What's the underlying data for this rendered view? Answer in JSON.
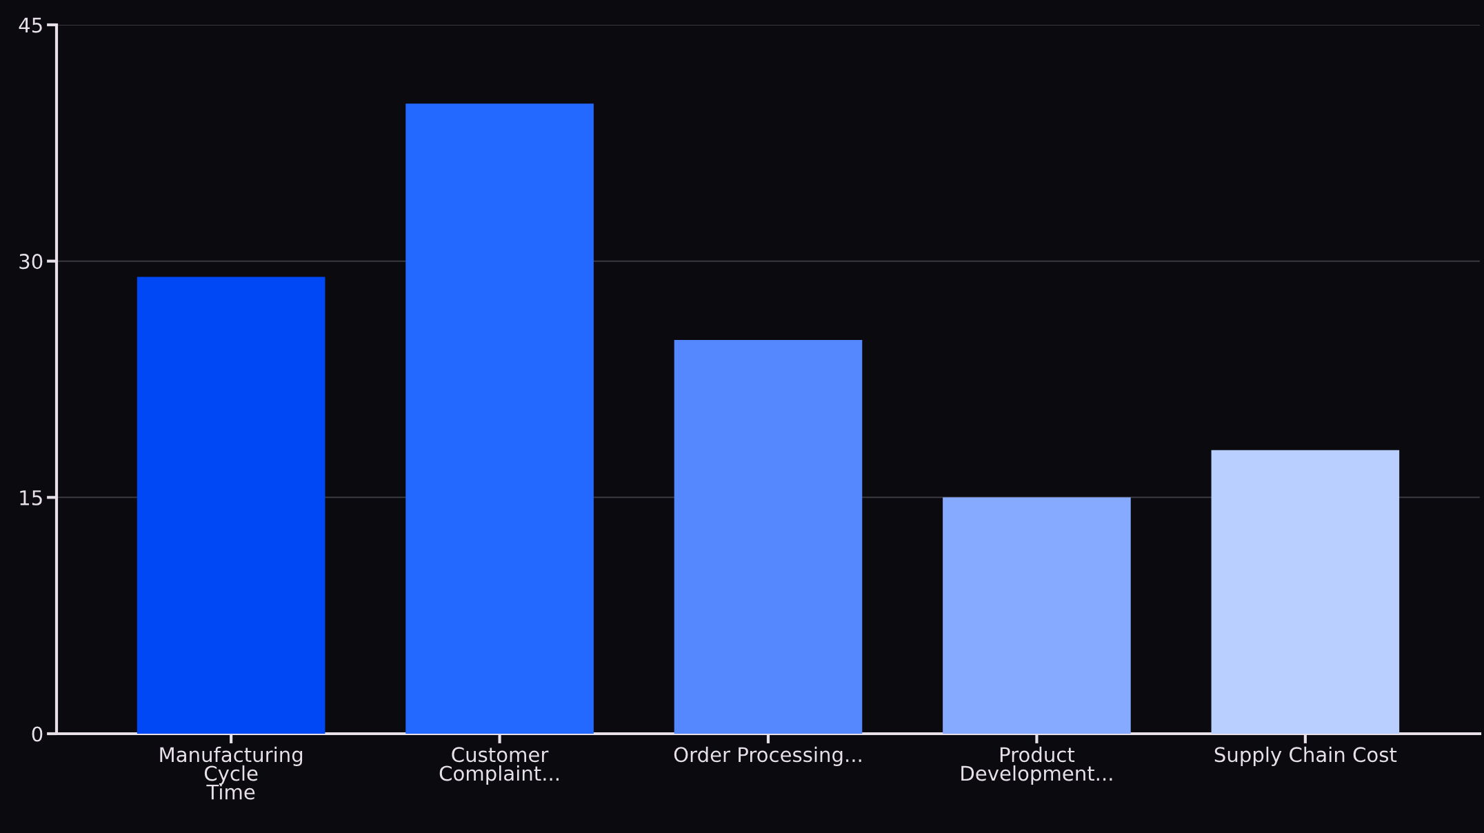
{
  "chart_data": {
    "type": "bar",
    "categories": [
      "Manufacturing\nCycle\nTime",
      "Customer\nComplaint...",
      "Order Processing...",
      "Product\nDevelopment...",
      "Supply Chain Cost"
    ],
    "values": [
      29,
      40,
      25,
      15,
      18
    ],
    "colors": [
      "#0047f5",
      "#2469ff",
      "#5588ff",
      "#85aaff",
      "#b8cfff"
    ],
    "ylim": [
      0,
      45
    ],
    "yticks": [
      0,
      15,
      30,
      45
    ],
    "grid": "y"
  }
}
